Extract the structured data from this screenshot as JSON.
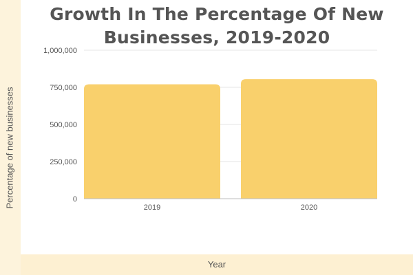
{
  "chart_data": {
    "type": "bar",
    "title": "Growth In The Percentage Of New Businesses, 2019-2020",
    "xlabel": "Year",
    "ylabel": "Percentage of new businesses",
    "categories": [
      "2019",
      "2020"
    ],
    "values": [
      770000,
      805000
    ],
    "ylim": [
      0,
      1000000
    ],
    "yticks": [
      0,
      250000,
      500000,
      750000,
      1000000
    ],
    "ytick_labels": [
      "0",
      "250,000",
      "500,000",
      "750,000",
      "1,000,000"
    ],
    "grid": true,
    "bar_color": "#f9d06c",
    "grid_color": "#e5e5e5",
    "axis_color": "#bdbdbd",
    "text_color": "#555555"
  }
}
